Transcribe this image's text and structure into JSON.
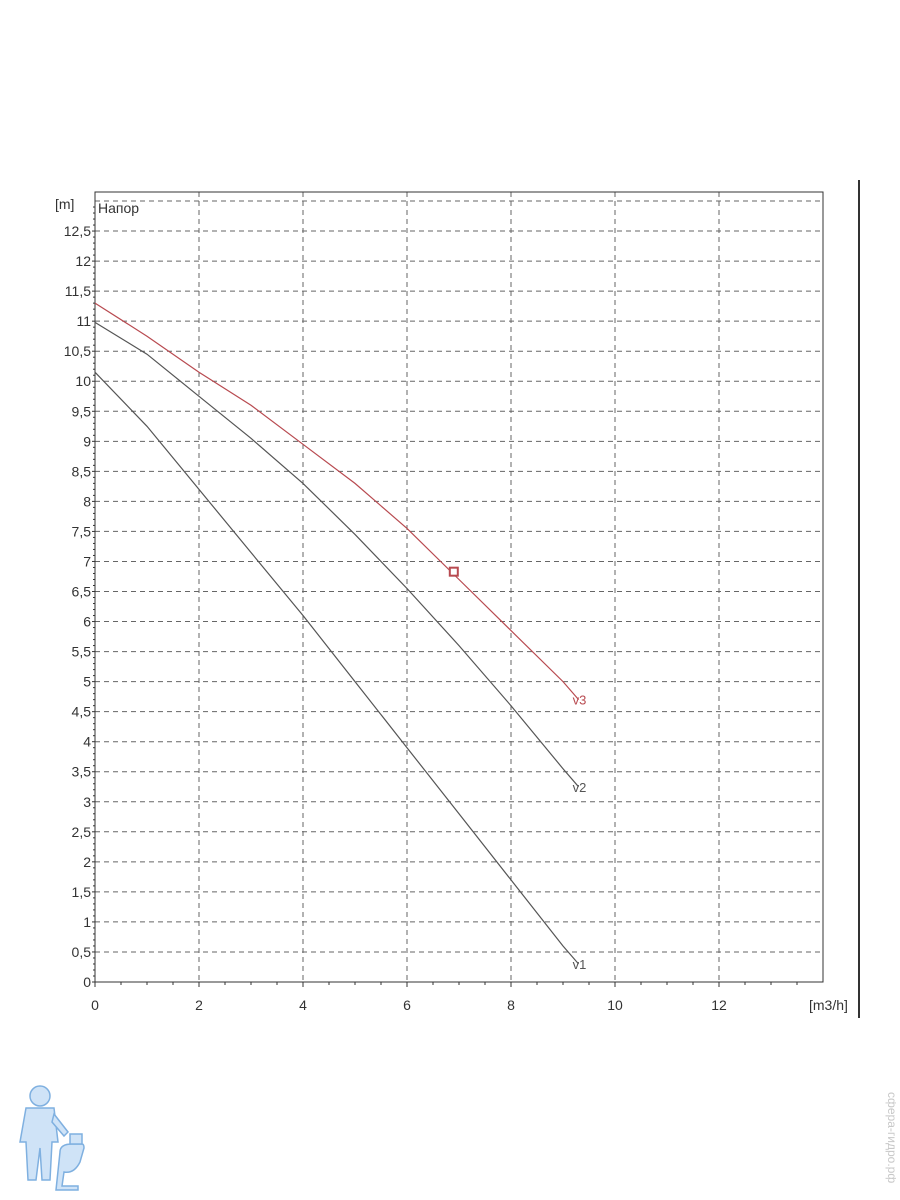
{
  "chart_data": {
    "type": "line",
    "title": "Напор",
    "xlabel": "[m3/h]",
    "ylabel": "[m]",
    "xlim": [
      0,
      14
    ],
    "ylim": [
      0,
      13
    ],
    "x_ticks": [
      {
        "v": 0,
        "label": "0"
      },
      {
        "v": 2,
        "label": "2"
      },
      {
        "v": 4,
        "label": "4"
      },
      {
        "v": 6,
        "label": "6"
      },
      {
        "v": 8,
        "label": "8"
      },
      {
        "v": 10,
        "label": "10"
      },
      {
        "v": 12,
        "label": "12"
      }
    ],
    "y_ticks": [
      {
        "v": 0,
        "label": "0"
      },
      {
        "v": 0.5,
        "label": "0,5"
      },
      {
        "v": 1,
        "label": "1"
      },
      {
        "v": 1.5,
        "label": "1,5"
      },
      {
        "v": 2,
        "label": "2"
      },
      {
        "v": 2.5,
        "label": "2,5"
      },
      {
        "v": 3,
        "label": "3"
      },
      {
        "v": 3.5,
        "label": "3,5"
      },
      {
        "v": 4,
        "label": "4"
      },
      {
        "v": 4.5,
        "label": "4,5"
      },
      {
        "v": 5,
        "label": "5"
      },
      {
        "v": 5.5,
        "label": "5,5"
      },
      {
        "v": 6,
        "label": "6"
      },
      {
        "v": 6.5,
        "label": "6,5"
      },
      {
        "v": 7,
        "label": "7"
      },
      {
        "v": 7.5,
        "label": "7,5"
      },
      {
        "v": 8,
        "label": "8"
      },
      {
        "v": 8.5,
        "label": "8,5"
      },
      {
        "v": 9,
        "label": "9"
      },
      {
        "v": 9.5,
        "label": "9,5"
      },
      {
        "v": 10,
        "label": "10"
      },
      {
        "v": 10.5,
        "label": "10,5"
      },
      {
        "v": 11,
        "label": "11"
      },
      {
        "v": 11.5,
        "label": "11,5"
      },
      {
        "v": 12,
        "label": "12"
      },
      {
        "v": 12.5,
        "label": "12,5"
      }
    ],
    "grid": true,
    "series": [
      {
        "name": "v1",
        "color": "#555555",
        "x": [
          0,
          1,
          2,
          3,
          4,
          5,
          6,
          7,
          8,
          9,
          9.3
        ],
        "y": [
          10.15,
          9.25,
          8.2,
          7.15,
          6.1,
          5.0,
          3.9,
          2.8,
          1.7,
          0.6,
          0.3
        ]
      },
      {
        "name": "v2",
        "color": "#555555",
        "x": [
          0,
          1,
          2,
          3,
          4,
          5,
          6,
          7,
          8,
          9,
          9.3
        ],
        "y": [
          10.98,
          10.45,
          9.75,
          9.05,
          8.3,
          7.45,
          6.55,
          5.6,
          4.6,
          3.55,
          3.25
        ]
      },
      {
        "name": "v3",
        "color": "#b84a50",
        "x": [
          0,
          1,
          2,
          3,
          4,
          5,
          6,
          7,
          8,
          9,
          9.3
        ],
        "y": [
          11.3,
          10.75,
          10.15,
          9.6,
          8.95,
          8.3,
          7.55,
          6.7,
          5.85,
          5.0,
          4.7
        ]
      }
    ],
    "operating_point": {
      "x": 6.9,
      "y": 6.83,
      "color": "#b84a50"
    }
  },
  "watermark": {
    "text": "сфера-гидро.рф"
  }
}
